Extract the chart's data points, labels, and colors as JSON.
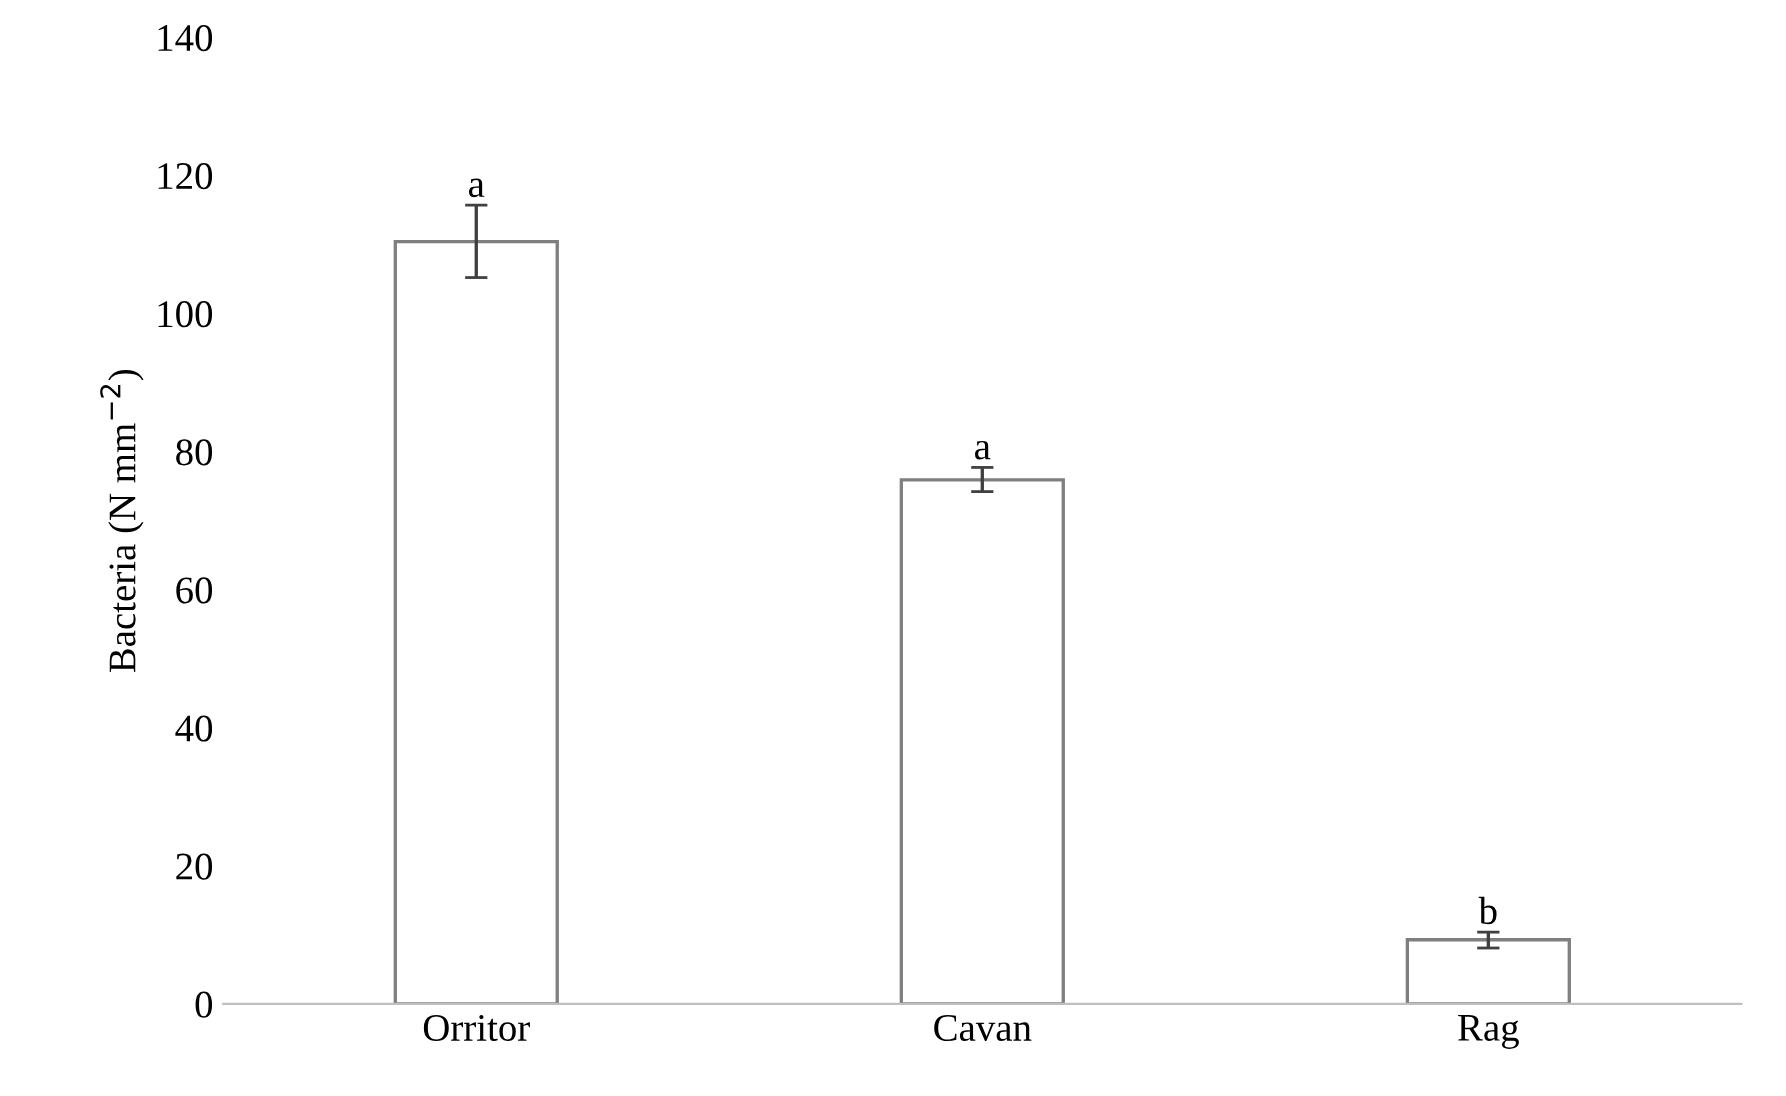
{
  "chart_data": {
    "type": "bar",
    "ylabel": "Bacteria (N mm$^{−2}$)",
    "categories": [
      "Orritor",
      "Cavan",
      "Rag"
    ],
    "values": [
      110.4,
      75.9,
      9.3
    ],
    "errors": [
      [
        105.2,
        115.7
      ],
      [
        74.2,
        77.7
      ],
      [
        8.1,
        10.4
      ]
    ],
    "color": "#ffffff",
    "ylim": [
      0,
      140
    ],
    "yticks": [
      0,
      20,
      40,
      60,
      80,
      100,
      120,
      140
    ],
    "grid": false,
    "annotations": [
      {
        "text": "a",
        "x": "Orritor",
        "y": 115.7
      },
      {
        "text": "a",
        "x": "Cavan",
        "y": 77.7
      },
      {
        "text": "b",
        "x": "Rag",
        "y": 10.4
      }
    ]
  }
}
